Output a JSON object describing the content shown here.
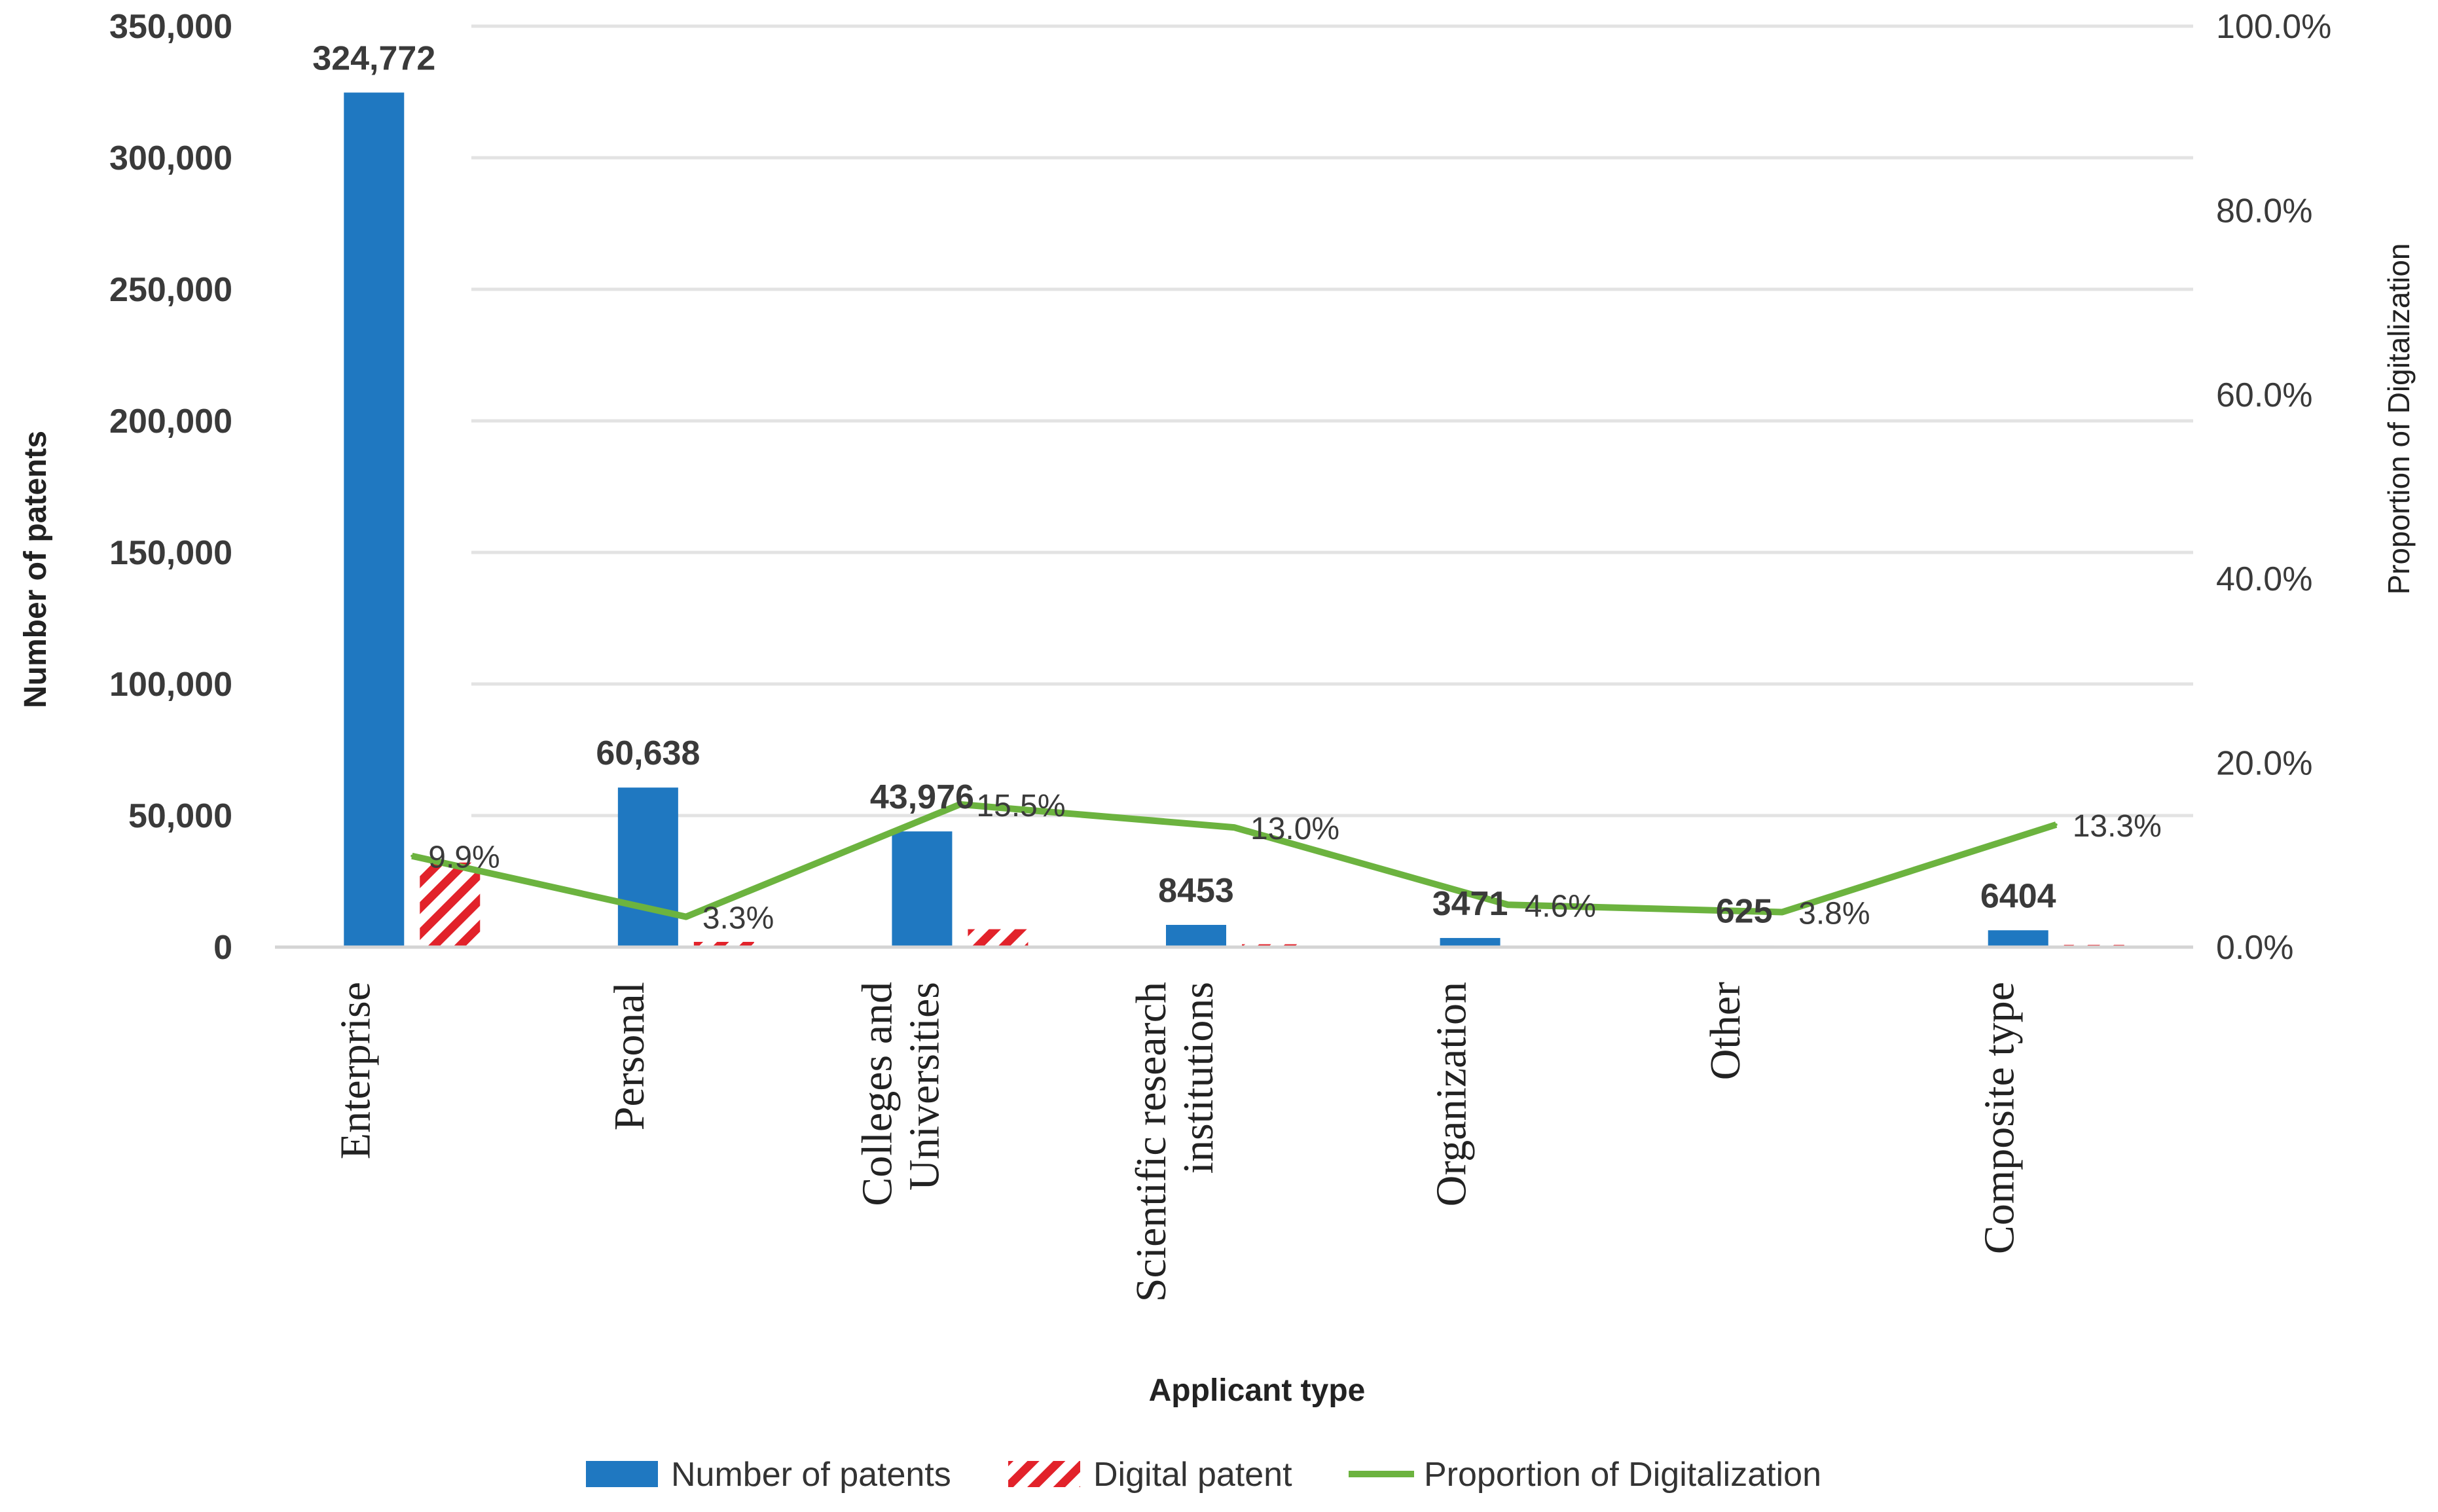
{
  "chart_data": {
    "type": "bar",
    "categories": [
      "Enterprise",
      "Personal",
      "Colleges and Universities",
      "Scientific research institutions",
      "Organization",
      "Other",
      "Composite type"
    ],
    "category_lines": [
      [
        "Enterprise"
      ],
      [
        "Personal"
      ],
      [
        "Colleges and",
        "Universities"
      ],
      [
        "Scientific research",
        "institutions"
      ],
      [
        "Organization"
      ],
      [
        "Other"
      ],
      [
        "Composite type"
      ]
    ],
    "series": [
      {
        "name": "Number of patents",
        "axis": "left",
        "color": "#1f78c1",
        "values": [
          324772,
          60638,
          43976,
          8453,
          3471,
          625,
          6404
        ],
        "labels": [
          "324,772",
          "60,638",
          "43,976",
          "8453",
          "3471",
          "625",
          "6404"
        ]
      },
      {
        "name": "Digital patent",
        "axis": "left",
        "color": "#e2222a",
        "pattern": "diagonal-hatch",
        "values": [
          32152,
          2001,
          6816,
          1099,
          160,
          24,
          852
        ]
      },
      {
        "name": "Proportion of Digitalization",
        "type": "line",
        "axis": "right",
        "color": "#6cb33f",
        "values": [
          9.9,
          3.3,
          15.5,
          13.0,
          4.6,
          3.8,
          13.3
        ],
        "labels": [
          "9.9%",
          "3.3%",
          "15.5%",
          "13.0%",
          "4.6%",
          "3.8%",
          "13.3%"
        ]
      }
    ],
    "xlabel": "Applicant type",
    "ylabel": "Number of patents",
    "y2label": "Proportion of Digitalization",
    "ylim": [
      0,
      350000
    ],
    "y2lim": [
      0,
      100
    ],
    "yticks": [
      "0",
      "50,000",
      "100,000",
      "150,000",
      "200,000",
      "250,000",
      "300,000",
      "350,000"
    ],
    "y2ticks": [
      "0.0%",
      "20.0%",
      "40.0%",
      "60.0%",
      "80.0%",
      "100.0%"
    ],
    "grid": true,
    "legend": [
      "Number of patents",
      "Digital patent",
      "Proportion of Digitalization"
    ],
    "legend_position": "bottom"
  }
}
